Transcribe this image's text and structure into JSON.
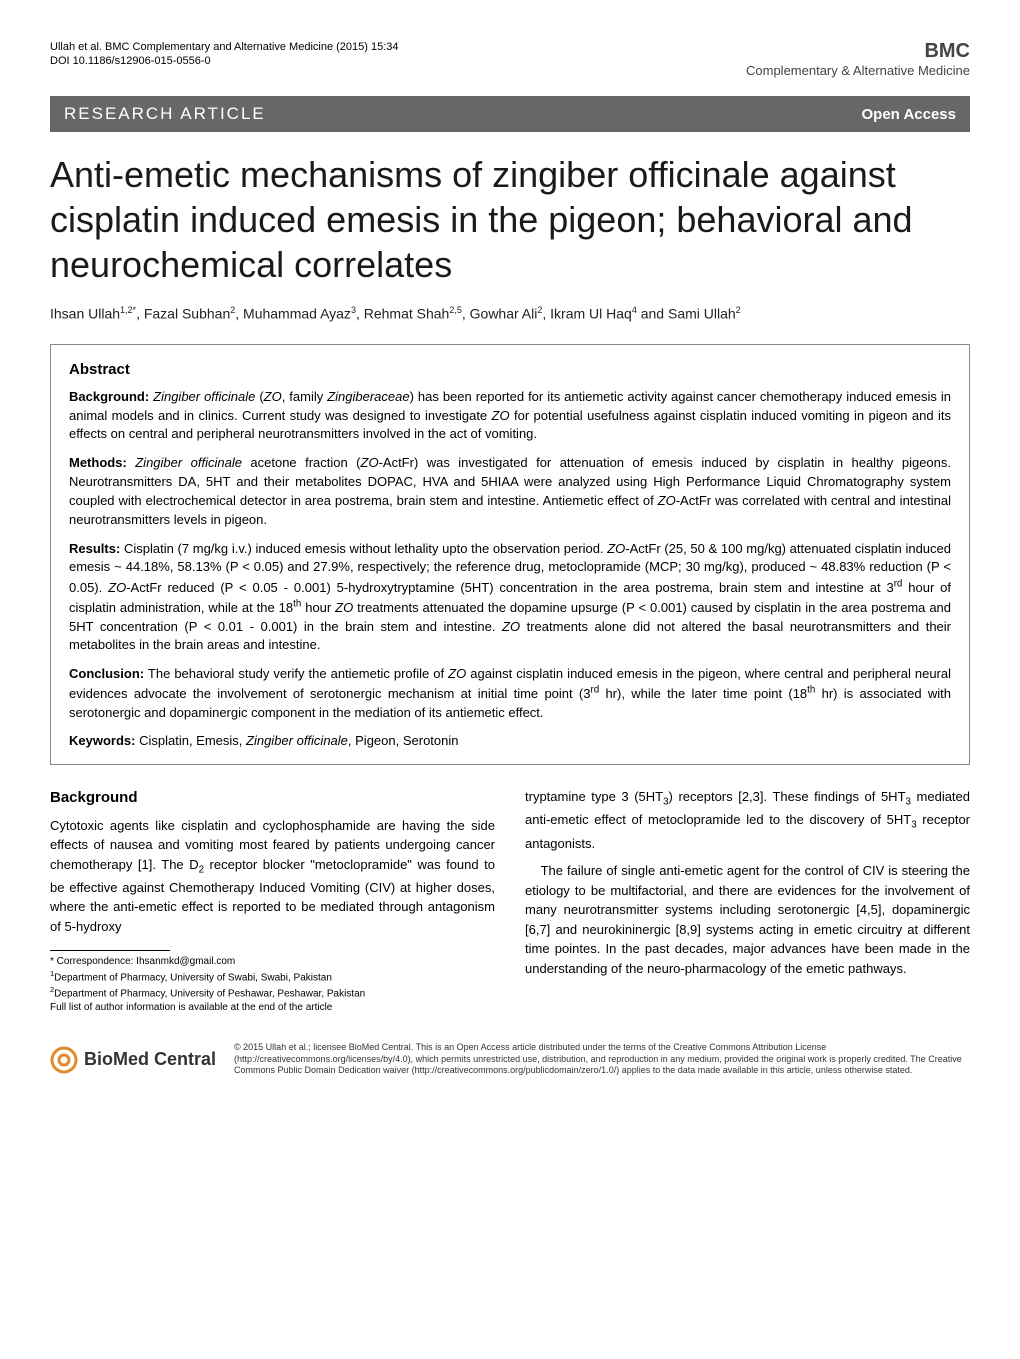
{
  "header": {
    "citation": "Ullah et al. BMC Complementary and Alternative Medicine  (2015) 15:34",
    "doi": "DOI 10.1186/s12906-015-0556-0",
    "journal_logo": "BMC",
    "journal_sub": "Complementary & Alternative Medicine"
  },
  "banner": {
    "left": "RESEARCH ARTICLE",
    "right": "Open Access"
  },
  "title": "Anti-emetic mechanisms of zingiber officinale against cisplatin induced emesis in the pigeon; behavioral and neurochemical correlates",
  "authors_html": "Ihsan Ullah<sup>1,2*</sup>, Fazal Subhan<sup>2</sup>, Muhammad Ayaz<sup>3</sup>, Rehmat Shah<sup>2,5</sup>, Gowhar Ali<sup>2</sup>, Ikram Ul Haq<sup>4</sup> and Sami Ullah<sup>2</sup>",
  "abstract": {
    "heading": "Abstract",
    "background_label": "Background:",
    "background_html": "<i>Zingiber officinale</i> (<i>ZO</i>, family <i>Zingiberaceae</i>) has been reported for its antiemetic activity against cancer chemotherapy induced emesis in animal models and in clinics. Current study was designed to investigate <i>ZO</i> for potential usefulness against cisplatin induced vomiting in pigeon and its effects on central and peripheral neurotransmitters involved in the act of vomiting.",
    "methods_label": "Methods:",
    "methods_html": "<i>Zingiber officinale</i> acetone fraction (<i>ZO</i>-ActFr) was investigated for attenuation of emesis induced by cisplatin in healthy pigeons. Neurotransmitters DA, 5HT and their metabolites DOPAC, HVA and 5HIAA were analyzed using High Performance Liquid Chromatography system coupled with electrochemical detector in area postrema, brain stem and intestine. Antiemetic effect of <i>ZO</i>-ActFr was correlated with central and intestinal neurotransmitters levels in pigeon.",
    "results_label": "Results:",
    "results_html": "Cisplatin (7 mg/kg i.v.) induced emesis without lethality upto the observation period. <i>ZO</i>-ActFr (25, 50 & 100 mg/kg) attenuated cisplatin induced emesis ~ 44.18%, 58.13% (P < 0.05) and 27.9%, respectively; the reference drug, metoclopramide (MCP; 30 mg/kg), produced ~ 48.83% reduction (P < 0.05). <i>ZO</i>-ActFr reduced (P < 0.05 - 0.001) 5-hydroxytryptamine (5HT) concentration in the area postrema, brain stem and intestine at 3<sup>rd</sup> hour of cisplatin administration, while at the 18<sup>th</sup> hour <i>ZO</i> treatments attenuated the dopamine upsurge (P < 0.001) caused by cisplatin in the area postrema and 5HT concentration (P < 0.01 - 0.001) in the brain stem and intestine. <i>ZO</i> treatments alone did not altered the basal neurotransmitters and their metabolites in the brain areas and intestine.",
    "conclusion_label": "Conclusion:",
    "conclusion_html": "The behavioral study verify the antiemetic profile of <i>ZO</i> against cisplatin induced emesis in the pigeon, where central and peripheral neural evidences advocate the involvement of serotonergic mechanism at initial time point (3<sup>rd</sup> hr), while the later time point (18<sup>th</sup> hr) is associated with serotonergic and dopaminergic component in the mediation of its antiemetic effect.",
    "keywords_label": "Keywords:",
    "keywords_html": "Cisplatin, Emesis, <i>Zingiber officinale</i>, Pigeon, Serotonin"
  },
  "body": {
    "background_heading": "Background",
    "col1_html": "Cytotoxic agents like cisplatin and cyclophosphamide are having the side effects of nausea and vomiting most feared by patients undergoing cancer chemotherapy [1]. The D<sub>2</sub> receptor blocker \"metoclopramide\" was found to be effective against Chemotherapy Induced Vomiting (CIV) at higher doses, where the anti-emetic effect is reported to be mediated through antagonism of 5-hydroxy",
    "col2_p1_html": "tryptamine type 3 (5HT<sub>3</sub>) receptors [2,3]. These findings of 5HT<sub>3</sub> mediated anti-emetic effect of metoclopramide led to the discovery of 5HT<sub>3</sub> receptor antagonists.",
    "col2_p2_html": "The failure of single anti-emetic agent for the control of CIV is steering the etiology to be multifactorial, and there are evidences for the involvement of many neurotransmitter systems including serotonergic [4,5], dopaminergic [6,7] and neurokininergic [8,9] systems acting in emetic circuitry at different time pointes. In the past decades, major advances have been made in the understanding of the neuro-pharmacology of the emetic pathways."
  },
  "footnotes": {
    "correspondence": "* Correspondence: Ihsanmkd@gmail.com",
    "affil1": "1Department of Pharmacy, University of Swabi, Swabi, Pakistan",
    "affil2": "2Department of Pharmacy, University of Peshawar, Peshawar, Pakistan",
    "full_list": "Full list of author information is available at the end of the article"
  },
  "footer": {
    "logo_text": "BioMed Central",
    "license": "© 2015 Ullah et al.; licensee BioMed Central. This is an Open Access article distributed under the terms of the Creative Commons Attribution License (http://creativecommons.org/licenses/by/4.0), which permits unrestricted use, distribution, and reproduction in any medium, provided the original work is properly credited. The Creative Commons Public Domain Dedication waiver (http://creativecommons.org/publicdomain/zero/1.0/) applies to the data made available in this article, unless otherwise stated."
  },
  "colors": {
    "banner_bg": "#676767",
    "banner_fg": "#ffffff",
    "logo_accent": "#e08b2c"
  }
}
